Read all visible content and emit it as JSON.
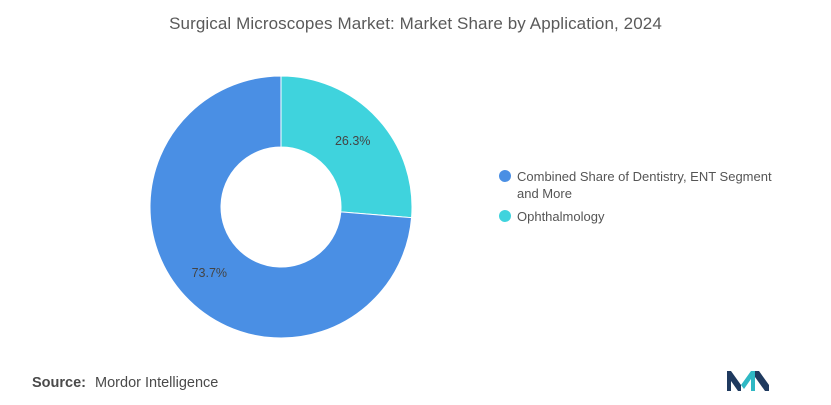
{
  "title": "Surgical Microscopes Market: Market Share by Application, 2024",
  "source": {
    "label": "Source:",
    "value": "Mordor Intelligence"
  },
  "logo": {
    "icon": "mordor-intelligence-logo"
  },
  "chart_data": {
    "type": "pie",
    "variant": "donut",
    "categories": [
      "Combined Share of Dentistry, ENT Segment and More",
      "Ophthalmology"
    ],
    "values": [
      73.7,
      26.3
    ],
    "data_labels": [
      "73.7%",
      "26.3%"
    ],
    "colors": [
      "#4a8fe4",
      "#3fd3dd"
    ],
    "legend_position": "right",
    "start_angle_deg": 0,
    "direction": "clockwise-from-top, Ophthalmology first",
    "title": "Surgical Microscopes Market: Market Share by Application, 2024"
  },
  "colors": {
    "logo_dark": "#1f3a5f",
    "logo_teal": "#2fb8c4"
  }
}
